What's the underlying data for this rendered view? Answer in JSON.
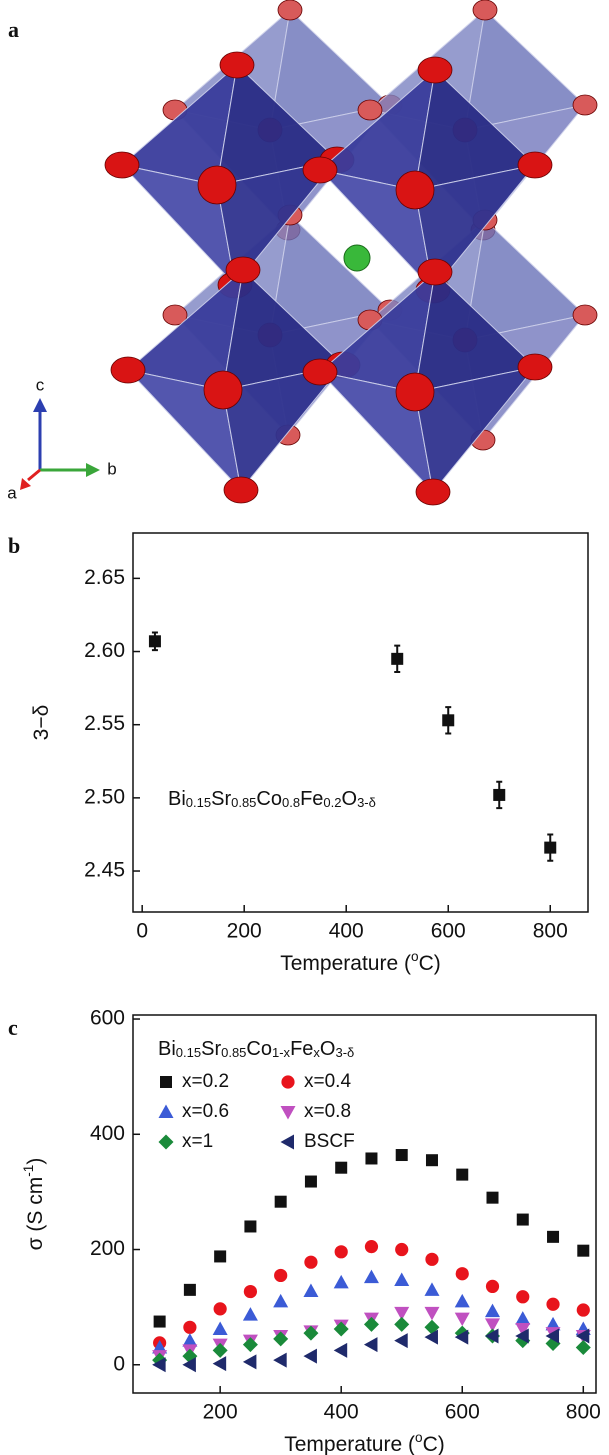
{
  "figure": {
    "panel_labels": [
      "a",
      "b",
      "c"
    ],
    "crystal_axes": [
      "c",
      "b",
      "a"
    ]
  },
  "chart_data": [
    {
      "type": "scatter",
      "x_label": [
        {
          "text": "Temperature ("
        },
        {
          "text": "o",
          "sup": true
        },
        {
          "text": "C)"
        }
      ],
      "y_label": [
        {
          "text": "3−δ"
        }
      ],
      "annotation": [
        {
          "text": "Bi"
        },
        {
          "text": "0.15",
          "sub": true
        },
        {
          "text": "Sr"
        },
        {
          "text": "0.85",
          "sub": true
        },
        {
          "text": "Co"
        },
        {
          "text": "0.8",
          "sub": true
        },
        {
          "text": "Fe"
        },
        {
          "text": "0.2",
          "sub": true
        },
        {
          "text": "O"
        },
        {
          "text": "3-δ",
          "sub": true
        }
      ],
      "xlim": [
        -18,
        874
      ],
      "ylim": [
        2.422,
        2.681
      ],
      "xticks": [
        0,
        200,
        400,
        600,
        800
      ],
      "yticks": [
        2.45,
        {
          "value": 2.5,
          "label": "2.50"
        },
        2.55,
        {
          "value": 2.6,
          "label": "2.60"
        },
        2.65
      ],
      "series": [
        {
          "marker": "square",
          "color": "#111111",
          "x": [
            25,
            500,
            600,
            700,
            800
          ],
          "values": [
            2.607,
            2.595,
            2.553,
            2.502,
            2.466
          ],
          "errors": [
            0.006,
            0.009,
            0.009,
            0.009,
            0.009
          ]
        }
      ]
    },
    {
      "type": "scatter",
      "x_label": [
        {
          "text": "Temperature ("
        },
        {
          "text": "o",
          "sup": true
        },
        {
          "text": "C)"
        }
      ],
      "y_label": [
        {
          "text": "σ (S cm"
        },
        {
          "text": "-1",
          "sup": true
        },
        {
          "text": ")"
        }
      ],
      "legend_title": [
        {
          "text": "Bi"
        },
        {
          "text": "0.15",
          "sub": true
        },
        {
          "text": "Sr"
        },
        {
          "text": "0.85",
          "sub": true
        },
        {
          "text": "Co"
        },
        {
          "text": "1-x",
          "sub": true
        },
        {
          "text": "Fe"
        },
        {
          "text": "x",
          "sub": true
        },
        {
          "text": "O"
        },
        {
          "text": "3-δ",
          "sub": true
        }
      ],
      "legend": "upper left",
      "xlim": [
        56,
        821
      ],
      "ylim": [
        -49,
        607
      ],
      "xticks": [
        200,
        400,
        600,
        800
      ],
      "yticks": [
        0,
        200,
        400,
        600
      ],
      "x": [
        100,
        150,
        200,
        250,
        300,
        350,
        400,
        450,
        500,
        550,
        600,
        650,
        700,
        750,
        800
      ],
      "series": [
        {
          "name": "x=0.2",
          "marker": "square",
          "color": "#111111",
          "values": [
            75,
            130,
            188,
            240,
            283,
            318,
            342,
            358,
            364,
            355,
            330,
            290,
            252,
            222,
            198
          ]
        },
        {
          "name": "x=0.4",
          "marker": "circle",
          "color": "#e8141c",
          "values": [
            38,
            65,
            97,
            127,
            155,
            178,
            196,
            205,
            200,
            183,
            158,
            136,
            118,
            105,
            95
          ]
        },
        {
          "name": "x=0.6",
          "marker": "triangle-up",
          "color": "#3b5bd6",
          "values": [
            30,
            42,
            62,
            87,
            110,
            128,
            143,
            152,
            147,
            130,
            110,
            93,
            80,
            70,
            62
          ]
        },
        {
          "name": "x=0.8",
          "marker": "triangle-down",
          "color": "#c050c0",
          "values": [
            15,
            25,
            35,
            42,
            50,
            58,
            68,
            80,
            90,
            90,
            80,
            70,
            62,
            55,
            50
          ]
        },
        {
          "name": "x=1",
          "marker": "diamond",
          "color": "#1a8a3a",
          "values": [
            8,
            15,
            25,
            35,
            45,
            55,
            62,
            70,
            70,
            65,
            55,
            50,
            42,
            37,
            30
          ]
        },
        {
          "name": "BSCF",
          "marker": "triangle-left",
          "color": "#1f2a6b",
          "values": [
            0,
            0,
            2,
            5,
            8,
            15,
            25,
            35,
            42,
            48,
            48,
            50,
            50,
            50,
            50
          ]
        }
      ]
    }
  ]
}
